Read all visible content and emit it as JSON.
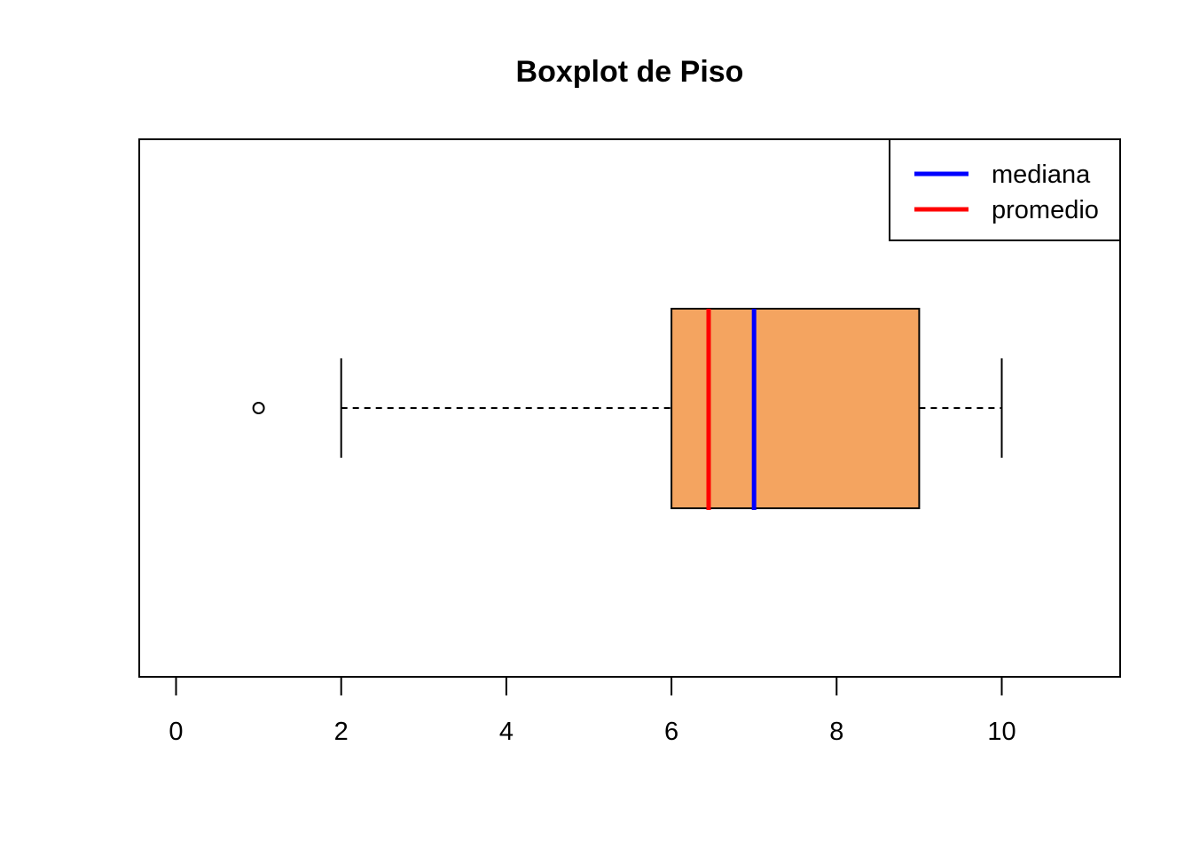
{
  "chart_data": {
    "type": "boxplot",
    "orientation": "horizontal",
    "title": "Boxplot de Piso",
    "xlabel": "",
    "ylabel": "",
    "xlim": [
      0,
      11.3
    ],
    "x_ticks": [
      0,
      2,
      4,
      6,
      8,
      10
    ],
    "x_tick_labels": [
      "0",
      "2",
      "4",
      "6",
      "8",
      "10"
    ],
    "box": {
      "whisker_low": 2,
      "q1": 6,
      "median": 7,
      "q3": 9,
      "whisker_high": 10,
      "outliers": [
        1
      ],
      "fill_color": "#F4A460"
    },
    "mean": 6.45,
    "median_line_color": "#0000FF",
    "mean_line_color": "#FF0000",
    "legend": {
      "position": "top-right",
      "entries": [
        {
          "label": "mediana",
          "color": "#0000FF"
        },
        {
          "label": "promedio",
          "color": "#FF0000"
        }
      ]
    },
    "grid": false
  }
}
